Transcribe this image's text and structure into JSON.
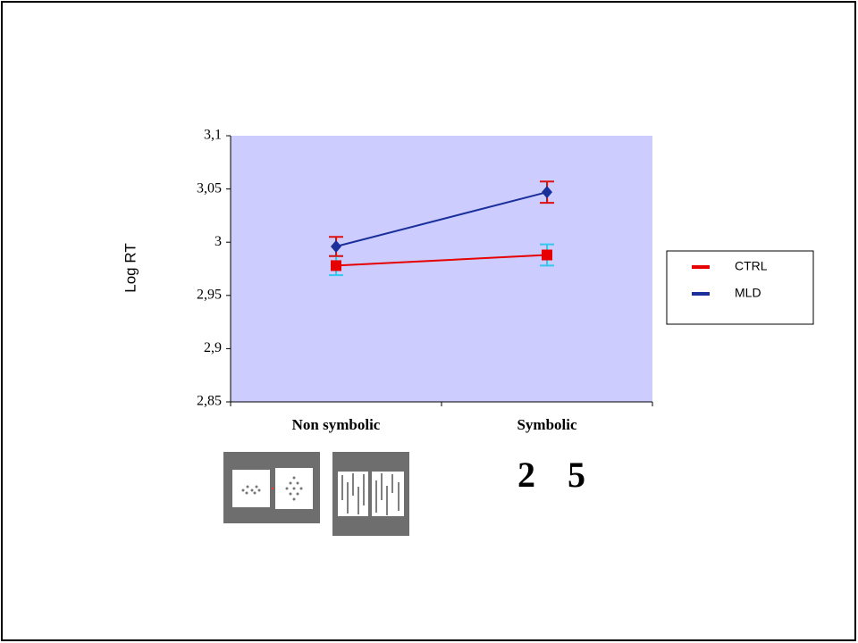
{
  "chart_data": {
    "type": "line",
    "y_label": "Log RT",
    "categories": [
      "Non symbolic",
      "Symbolic"
    ],
    "series": [
      {
        "name": "CTRL",
        "color": "#e60000",
        "marker": "square",
        "error_color": "#33c8ee",
        "values": [
          2.978,
          2.988
        ],
        "errors": [
          0.009,
          0.01
        ]
      },
      {
        "name": "MLD",
        "color": "#1a2f9a",
        "marker": "diamond",
        "error_color": "#dd1111",
        "values": [
          2.996,
          3.047
        ],
        "errors": [
          0.009,
          0.01
        ]
      }
    ],
    "ylim": [
      2.85,
      3.1
    ],
    "yticks": [
      {
        "value": 2.85,
        "label": "2,85"
      },
      {
        "value": 2.9,
        "label": "2,9"
      },
      {
        "value": 2.95,
        "label": "2,95"
      },
      3,
      {
        "value": 3.05,
        "label": "3,05"
      },
      {
        "value": 3.1,
        "label": "3,1"
      }
    ],
    "plot_background": "#ccccff",
    "legend": "right",
    "annotations": [
      "2",
      "5"
    ]
  }
}
